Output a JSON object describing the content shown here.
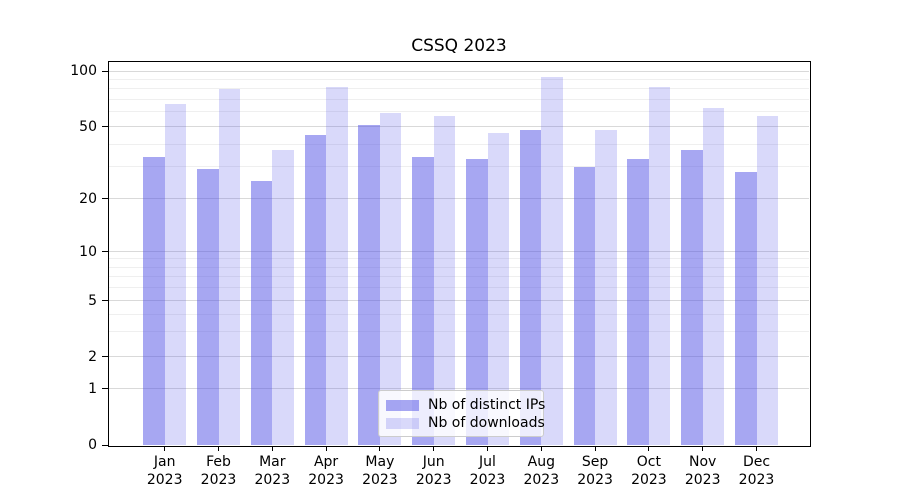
{
  "title": "CSSQ 2023",
  "legend": {
    "items": [
      {
        "label": "Nb of distinct IPs",
        "color": "#5050e6",
        "alpha": 0.5
      },
      {
        "label": "Nb of downloads",
        "color": "#5050e6",
        "alpha": 0.22
      }
    ]
  },
  "y_axis": {
    "tick_labels": [
      "0",
      "1",
      "2",
      "5",
      "10",
      "20",
      "50",
      "100"
    ],
    "tick_values": [
      0,
      1,
      2,
      5,
      10,
      20,
      50,
      100
    ],
    "minor_tick_values": [
      3,
      4,
      6,
      7,
      8,
      9,
      30,
      40,
      60,
      70,
      80,
      90
    ]
  },
  "x_axis": {
    "months": [
      "Jan",
      "Feb",
      "Mar",
      "Apr",
      "May",
      "Jun",
      "Jul",
      "Aug",
      "Sep",
      "Oct",
      "Nov",
      "Dec"
    ],
    "year": "2023"
  },
  "chart_data": {
    "type": "bar",
    "title": "CSSQ 2023",
    "categories": [
      "Jan 2023",
      "Feb 2023",
      "Mar 2023",
      "Apr 2023",
      "May 2023",
      "Jun 2023",
      "Jul 2023",
      "Aug 2023",
      "Sep 2023",
      "Oct 2023",
      "Nov 2023",
      "Dec 2023"
    ],
    "series": [
      {
        "name": "Nb of distinct IPs",
        "color": "#5050e6",
        "alpha": 0.5,
        "values": [
          34,
          29,
          25,
          45,
          51,
          34,
          33,
          48,
          30,
          33,
          37,
          28
        ]
      },
      {
        "name": "Nb of downloads",
        "color": "#5050e6",
        "alpha": 0.22,
        "values": [
          66,
          80,
          37,
          82,
          59,
          57,
          46,
          93,
          48,
          82,
          63,
          57
        ]
      }
    ],
    "xlabel": "",
    "ylabel": "",
    "yscale": "symlog-like (logarithmic above 1, linear 0 to 1)",
    "yticks": [
      0,
      1,
      2,
      5,
      10,
      20,
      50,
      100
    ],
    "ylim": [
      0,
      110
    ],
    "grid": "horizontal major + log minor gridlines",
    "legend_position": "lower center inside plot"
  }
}
